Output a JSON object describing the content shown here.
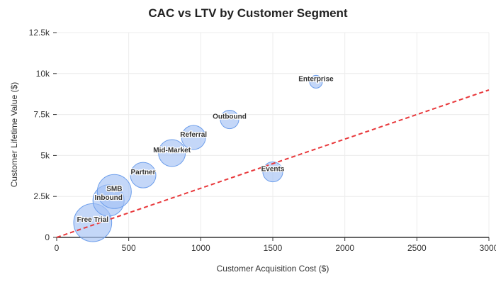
{
  "chart_data": {
    "type": "scatter",
    "subtype": "bubble",
    "title": "CAC vs LTV by Customer Segment",
    "xlabel": "Customer Acquisition Cost ($)",
    "ylabel": "Customer Lifetime Value ($)",
    "xlim": [
      0,
      3000
    ],
    "ylim": [
      0,
      12500
    ],
    "xticks": [
      0,
      500,
      1000,
      1500,
      2000,
      2500,
      3000
    ],
    "xtick_labels": [
      "0",
      "500",
      "1000",
      "1500",
      "2000",
      "2500",
      "3000"
    ],
    "yticks": [
      0,
      2500,
      5000,
      7500,
      10000,
      12500
    ],
    "ytick_labels": [
      "0",
      "2.5k",
      "5k",
      "7.5k",
      "10k",
      "12.5k"
    ],
    "grid": true,
    "bubble_color": "#a4c2f4",
    "bubble_stroke": "#6d9eeb",
    "points": [
      {
        "label": "Free Trial",
        "x": 250,
        "y": 900,
        "size": 80
      },
      {
        "label": "Inbound",
        "x": 360,
        "y": 2250,
        "size": 54
      },
      {
        "label": "SMB",
        "x": 400,
        "y": 2800,
        "size": 64
      },
      {
        "label": "Partner",
        "x": 600,
        "y": 3800,
        "size": 36
      },
      {
        "label": "Mid-Market",
        "x": 800,
        "y": 5150,
        "size": 40
      },
      {
        "label": "Referral",
        "x": 950,
        "y": 6100,
        "size": 32
      },
      {
        "label": "Outbound",
        "x": 1200,
        "y": 7200,
        "size": 19
      },
      {
        "label": "Events",
        "x": 1500,
        "y": 4000,
        "size": 22
      },
      {
        "label": "Enterprise",
        "x": 1800,
        "y": 9500,
        "size": 9
      }
    ],
    "reference_line": {
      "x": [
        0,
        3000
      ],
      "y": [
        0,
        9000
      ],
      "color": "#e8383b",
      "style": "dashed"
    }
  }
}
